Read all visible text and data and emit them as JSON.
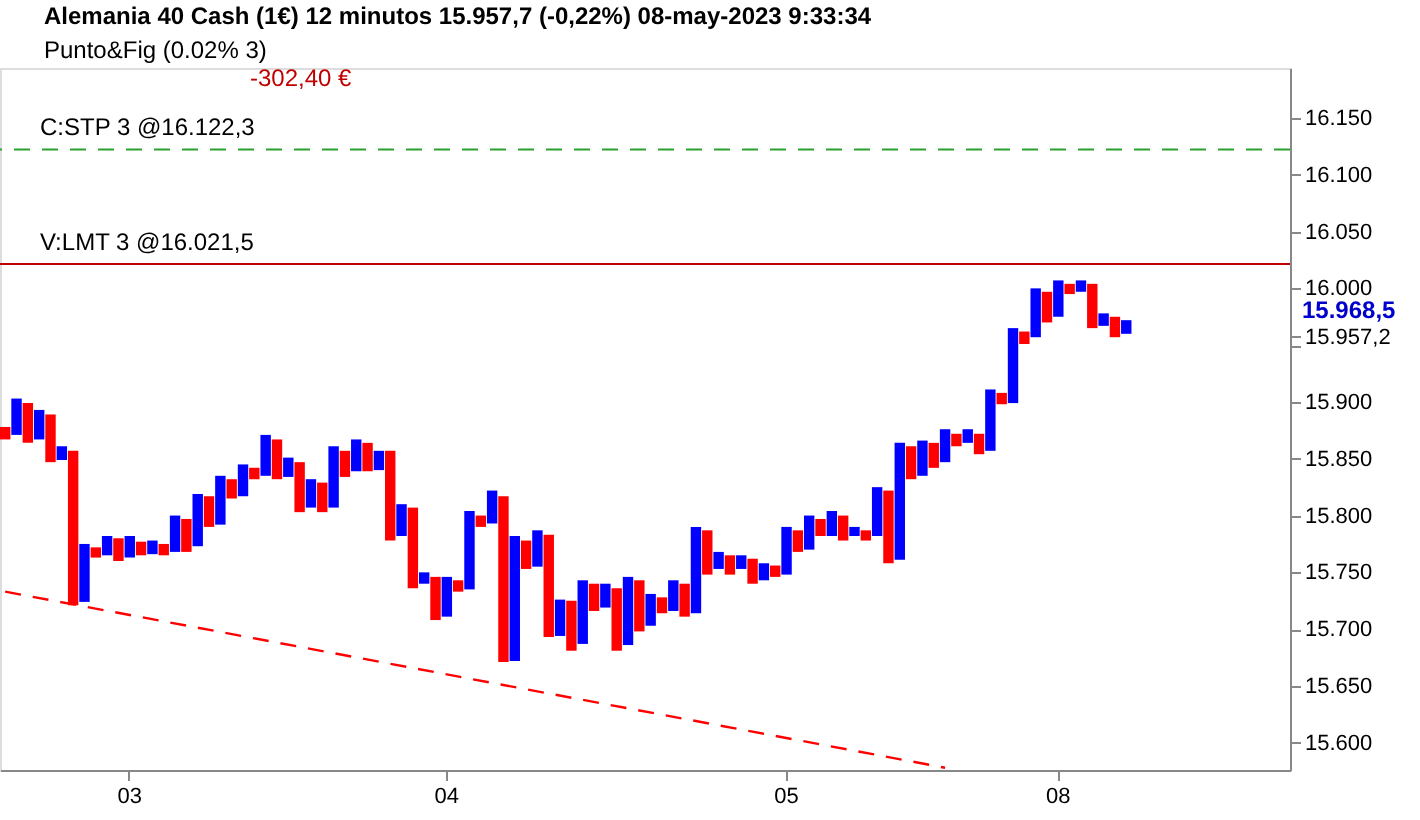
{
  "chart_data": {
    "type": "bar",
    "title": "Alemania 40 Cash (1€) 12 minutos 15.957,7 (-0,22%) 08-may-2023 9:33:34",
    "categories": [
      null,
      null,
      null,
      null,
      null,
      null,
      null,
      null,
      null,
      null,
      null,
      "03",
      null,
      null,
      null,
      null,
      null,
      null,
      null,
      null,
      null,
      null,
      null,
      null,
      null,
      null,
      null,
      null,
      null,
      null,
      null,
      null,
      null,
      null,
      null,
      null,
      null,
      null,
      null,
      "04",
      null,
      null,
      null,
      null,
      null,
      null,
      null,
      null,
      null,
      null,
      null,
      null,
      null,
      null,
      null,
      null,
      null,
      null,
      null,
      null,
      null,
      null,
      null,
      null,
      null,
      null,
      null,
      null,
      null,
      "05",
      null,
      null,
      null,
      null,
      null,
      null,
      null,
      null,
      null,
      null,
      null,
      null,
      null,
      null,
      null,
      null,
      null,
      null,
      null,
      null,
      null,
      null,
      null,
      "08",
      null,
      null,
      null,
      null,
      null,
      null,
      null,
      null,
      null,
      null,
      null,
      null,
      null,
      null,
      null,
      null,
      null,
      null,
      null,
      null
    ],
    "series": [
      {
        "base": [
          15867,
          15871,
          15864,
          15867,
          15847,
          15849,
          15721,
          15724,
          15763,
          15765,
          15760,
          15763,
          15765,
          15766,
          15765,
          15768,
          15768,
          15773,
          15790,
          15792,
          15815,
          15817,
          15832,
          15835,
          15832,
          15834,
          15803,
          15807,
          15803,
          15807,
          15834,
          15839,
          15839,
          15840,
          15778,
          15782,
          15736,
          15740,
          15708,
          15711,
          15733,
          15735,
          15790,
          15793,
          15671,
          15672,
          15753,
          15755,
          15693,
          15694,
          15681,
          15687,
          15716,
          15719,
          15681,
          15686,
          15698,
          15703,
          15714,
          15716,
          15711,
          15714,
          15748,
          15753,
          15748,
          15753,
          15740,
          15743,
          15746,
          15748,
          15768,
          15770,
          15782,
          15782,
          15778,
          15782,
          15778,
          15782,
          15758,
          15761,
          15832,
          15835,
          15842,
          15847,
          15861,
          15864,
          15854,
          15857,
          15898,
          15899,
          15951,
          15957,
          15970,
          15975,
          15995,
          15997,
          15965,
          15967,
          15957,
          15960,
          null,
          null,
          null,
          null,
          null,
          null,
          null,
          null,
          null,
          null,
          null,
          null,
          null,
          null
        ],
        "values": [
          11,
          32,
          35,
          26,
          42,
          12,
          136,
          51,
          9,
          17,
          20,
          19,
          12,
          12,
          10,
          32,
          29,
          46,
          27,
          43,
          17,
          28,
          10,
          36,
          35,
          17,
          44,
          25,
          26,
          54,
          23,
          28,
          25,
          17,
          79,
          28,
          71,
          10,
          38,
          35,
          10,
          69,
          10,
          29,
          146,
          110,
          25,
          32,
          90,
          32,
          44,
          56,
          24,
          21,
          55,
          60,
          45,
          28,
          14,
          27,
          29,
          76,
          39,
          15,
          17,
          12,
          22,
          15,
          10,
          42,
          19,
          30,
          15,
          22,
          22,
          8,
          9,
          43,
          64,
          103,
          29,
          31,
          22,
          29,
          11,
          12,
          18,
          54,
          10,
          66,
          11,
          43,
          27,
          32,
          9,
          10,
          39,
          11,
          18,
          12,
          null,
          null,
          null,
          null,
          null,
          null,
          null,
          null,
          null,
          null,
          null,
          null,
          null,
          null
        ],
        "colors": [
          "#ff0000",
          "#0000ff",
          "#ff0000",
          "#0000ff",
          "#ff0000",
          "#0000ff",
          "#ff0000",
          "#0000ff",
          "#ff0000",
          "#0000ff",
          "#ff0000",
          "#0000ff",
          "#ff0000",
          "#0000ff",
          "#ff0000",
          "#0000ff",
          "#ff0000",
          "#0000ff",
          "#ff0000",
          "#0000ff",
          "#ff0000",
          "#0000ff",
          "#ff0000",
          "#0000ff",
          "#ff0000",
          "#0000ff",
          "#ff0000",
          "#0000ff",
          "#ff0000",
          "#0000ff",
          "#ff0000",
          "#0000ff",
          "#ff0000",
          "#0000ff",
          "#ff0000",
          "#0000ff",
          "#ff0000",
          "#0000ff",
          "#ff0000",
          "#0000ff",
          "#ff0000",
          "#0000ff",
          "#ff0000",
          "#0000ff",
          "#ff0000",
          "#0000ff",
          "#ff0000",
          "#0000ff",
          "#ff0000",
          "#0000ff",
          "#ff0000",
          "#0000ff",
          "#ff0000",
          "#0000ff",
          "#ff0000",
          "#0000ff",
          "#ff0000",
          "#0000ff",
          "#ff0000",
          "#0000ff",
          "#ff0000",
          "#0000ff",
          "#ff0000",
          "#0000ff",
          "#ff0000",
          "#0000ff",
          "#ff0000",
          "#0000ff",
          "#ff0000",
          "#0000ff",
          "#ff0000",
          "#0000ff",
          "#ff0000",
          "#0000ff",
          "#ff0000",
          "#0000ff",
          "#ff0000",
          "#0000ff",
          "#ff0000",
          "#0000ff",
          "#ff0000",
          "#0000ff",
          "#ff0000",
          "#0000ff",
          "#ff0000",
          "#0000ff",
          "#ff0000",
          "#0000ff",
          "#ff0000",
          "#0000ff",
          "#ff0000",
          "#0000ff",
          "#ff0000",
          "#0000ff",
          "#ff0000",
          "#0000ff",
          "#ff0000",
          "#0000ff",
          "#ff0000",
          "#0000ff",
          null,
          null,
          null,
          null,
          null,
          null,
          null,
          null,
          null,
          null,
          null,
          null,
          null,
          null
        ]
      },
      {
        "type": "line",
        "color": "#ff0000",
        "line_style": "dashed",
        "values": [
          15733,
          null,
          null,
          null,
          null,
          null,
          null,
          null,
          null,
          null,
          null,
          null,
          null,
          null,
          null,
          null,
          null,
          null,
          null,
          null,
          null,
          null,
          null,
          null,
          null,
          null,
          null,
          null,
          null,
          null,
          null,
          null,
          null,
          null,
          null,
          null,
          null,
          null,
          null,
          null,
          null,
          null,
          null,
          null,
          null,
          null,
          null,
          null,
          null,
          null,
          null,
          null,
          null,
          null,
          null,
          null,
          null,
          null,
          null,
          null,
          null,
          null,
          null,
          null,
          null,
          null,
          null,
          null,
          null,
          null,
          null,
          null,
          null,
          null,
          null,
          null,
          null,
          null,
          null,
          null,
          null,
          null,
          null,
          15578,
          null,
          null,
          null,
          null,
          null,
          null,
          null,
          null,
          null,
          null,
          null,
          null,
          null,
          null,
          null,
          null,
          null,
          null,
          null,
          null,
          null,
          null,
          null,
          null,
          null,
          null,
          null,
          null,
          null,
          null
        ]
      }
    ],
    "ylim": [
      15576,
      16194
    ],
    "yticks": [
      {
        "value": 15600,
        "label": "15.600"
      },
      {
        "value": 15650,
        "label": "15.650"
      },
      {
        "value": 15700,
        "label": "15.700"
      },
      {
        "value": 15750,
        "label": "15.750"
      },
      {
        "value": 15800,
        "label": "15.800"
      },
      {
        "value": 15850,
        "label": "15.850"
      },
      {
        "value": 15900,
        "label": "15.900"
      },
      {
        "value": 15950,
        "label": null
      },
      {
        "value": 15957.2,
        "label": "15.957,2"
      },
      {
        "value": 16000,
        "label": "16.000"
      },
      {
        "value": 16050,
        "label": "16.050"
      },
      {
        "value": 16100,
        "label": "16.100"
      },
      {
        "value": 16150,
        "label": "16.150"
      }
    ],
    "grid": false,
    "ref_lines": [
      {
        "axis": "y",
        "value": 16122.3,
        "label": "C:STP  3 @16.122,3",
        "color": "#2ca02c",
        "line_style": "dashed"
      },
      {
        "axis": "y",
        "value": 16021.5,
        "label": "V:LMT  3 @16.021,5",
        "color": "#c00000",
        "line_style": "solid"
      }
    ],
    "annotations": [
      "Punto&Fig (0.02% 3)",
      "-302,40 €",
      "15.968,5"
    ]
  }
}
